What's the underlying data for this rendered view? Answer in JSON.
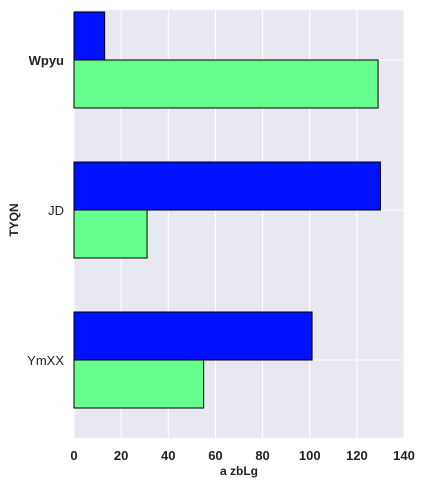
{
  "chart_data": {
    "type": "bar",
    "orientation": "horizontal",
    "categories": [
      "Wpyu",
      "JD",
      "YmXX"
    ],
    "series": [
      {
        "values": [
          13,
          130,
          101
        ],
        "color": "#0011ff"
      },
      {
        "values": [
          129,
          31,
          55
        ],
        "color": "#66ff8d"
      }
    ],
    "xlabel": "a  zbLg",
    "ylabel": "TYQN",
    "xlim": [
      0,
      140
    ],
    "xticks": [
      0,
      20,
      40,
      60,
      80,
      100,
      120,
      140
    ],
    "xtick_labels": [
      "0",
      "20",
      "40",
      "60",
      "80",
      "100",
      "120",
      "140"
    ],
    "grid": true,
    "legend": "none",
    "background_color": "#e8e8f0",
    "grid_color": "#ffffff"
  }
}
